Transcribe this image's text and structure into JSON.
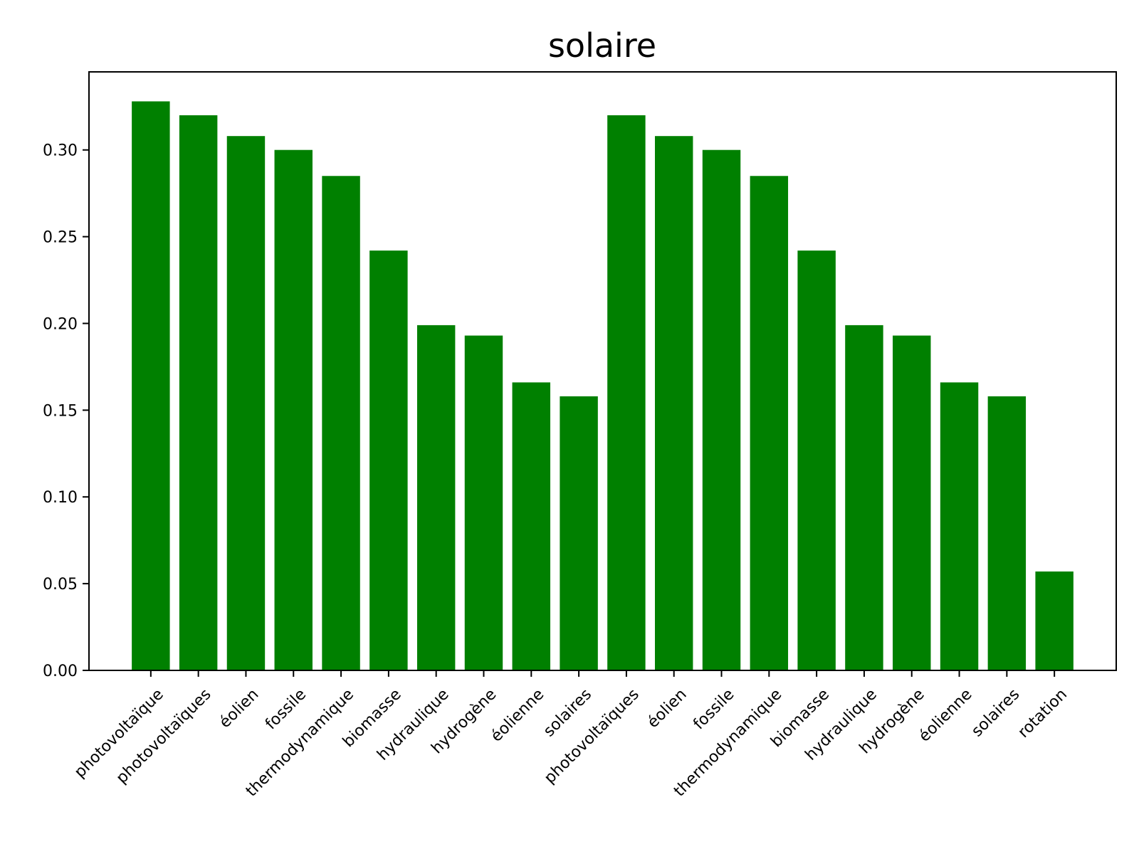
{
  "chart_data": {
    "type": "bar",
    "title": "solaire",
    "xlabel": "",
    "ylabel": "",
    "ylim": [
      0,
      0.345
    ],
    "yticks": [
      0.0,
      0.05,
      0.1,
      0.15,
      0.2,
      0.25,
      0.3
    ],
    "ytick_labels": [
      "0.00",
      "0.05",
      "0.10",
      "0.15",
      "0.20",
      "0.25",
      "0.30"
    ],
    "bar_color": "#008000",
    "grid": false,
    "categories": [
      "photovoltaïque",
      "photovoltaïques",
      "éolien",
      "fossile",
      "thermodynamique",
      "biomasse",
      "hydraulique",
      "hydrogène",
      "éolienne",
      "solaires",
      "photovoltaïques",
      "éolien",
      "fossile",
      "thermodynamique",
      "biomasse",
      "hydraulique",
      "hydrogène",
      "éolienne",
      "solaires",
      "rotation"
    ],
    "values": [
      0.328,
      0.32,
      0.308,
      0.3,
      0.285,
      0.242,
      0.199,
      0.193,
      0.166,
      0.158,
      0.32,
      0.308,
      0.3,
      0.285,
      0.242,
      0.199,
      0.193,
      0.166,
      0.158,
      0.057
    ]
  }
}
